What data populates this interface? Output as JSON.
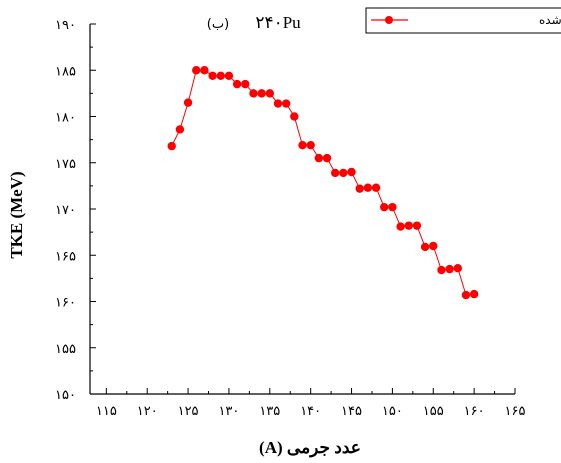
{
  "chart_data": {
    "type": "line",
    "panel_label": "(ب)",
    "isotope_label": "۲۴۰Pu",
    "xlabel": "عدد جرمی (A)",
    "ylabel": "TKE (MeV)",
    "xlim": [
      113,
      165
    ],
    "ylim": [
      150,
      190
    ],
    "xticks": [
      115,
      120,
      125,
      130,
      135,
      140,
      145,
      150,
      155,
      160,
      165
    ],
    "yticks": [
      150,
      155,
      160,
      165,
      170,
      175,
      180,
      185,
      190
    ],
    "xtick_labels": [
      "۱۱۵",
      "۱۲۰",
      "۱۲۵",
      "۱۳۰",
      "۱۳۵",
      "۱۴۰",
      "۱۴۵",
      "۱۵۰",
      "۱۵۵",
      "۱۶۰",
      "۱۶۵"
    ],
    "ytick_labels": [
      "۱۵۰",
      "۱۵۵",
      "۱۶۰",
      "۱۶۵",
      "۱۷۰",
      "۱۷۵",
      "۱۸۰",
      "۱۸۵",
      "۱۹۰"
    ],
    "legend_position": "top-right",
    "series": [
      {
        "name": "نتایج محاسبه شده",
        "color": "#ff0000",
        "marker": "circle",
        "x": [
          123,
          124,
          125,
          126,
          127,
          128,
          129,
          130,
          131,
          132,
          133,
          134,
          135,
          136,
          137,
          138,
          139,
          140,
          141,
          142,
          143,
          144,
          145,
          146,
          147,
          148,
          149,
          150,
          151,
          152,
          153,
          154,
          155,
          156,
          157,
          158,
          159,
          160
        ],
        "y": [
          176.8,
          178.6,
          181.5,
          185.0,
          185.0,
          184.4,
          184.4,
          184.4,
          183.5,
          183.5,
          182.5,
          182.5,
          182.5,
          181.4,
          181.4,
          180.0,
          176.9,
          176.9,
          175.5,
          175.5,
          173.9,
          173.9,
          174.0,
          172.2,
          172.3,
          172.3,
          170.2,
          170.2,
          168.1,
          168.2,
          168.2,
          165.9,
          166.0,
          163.4,
          163.5,
          163.6,
          160.7,
          160.8
        ]
      }
    ]
  }
}
